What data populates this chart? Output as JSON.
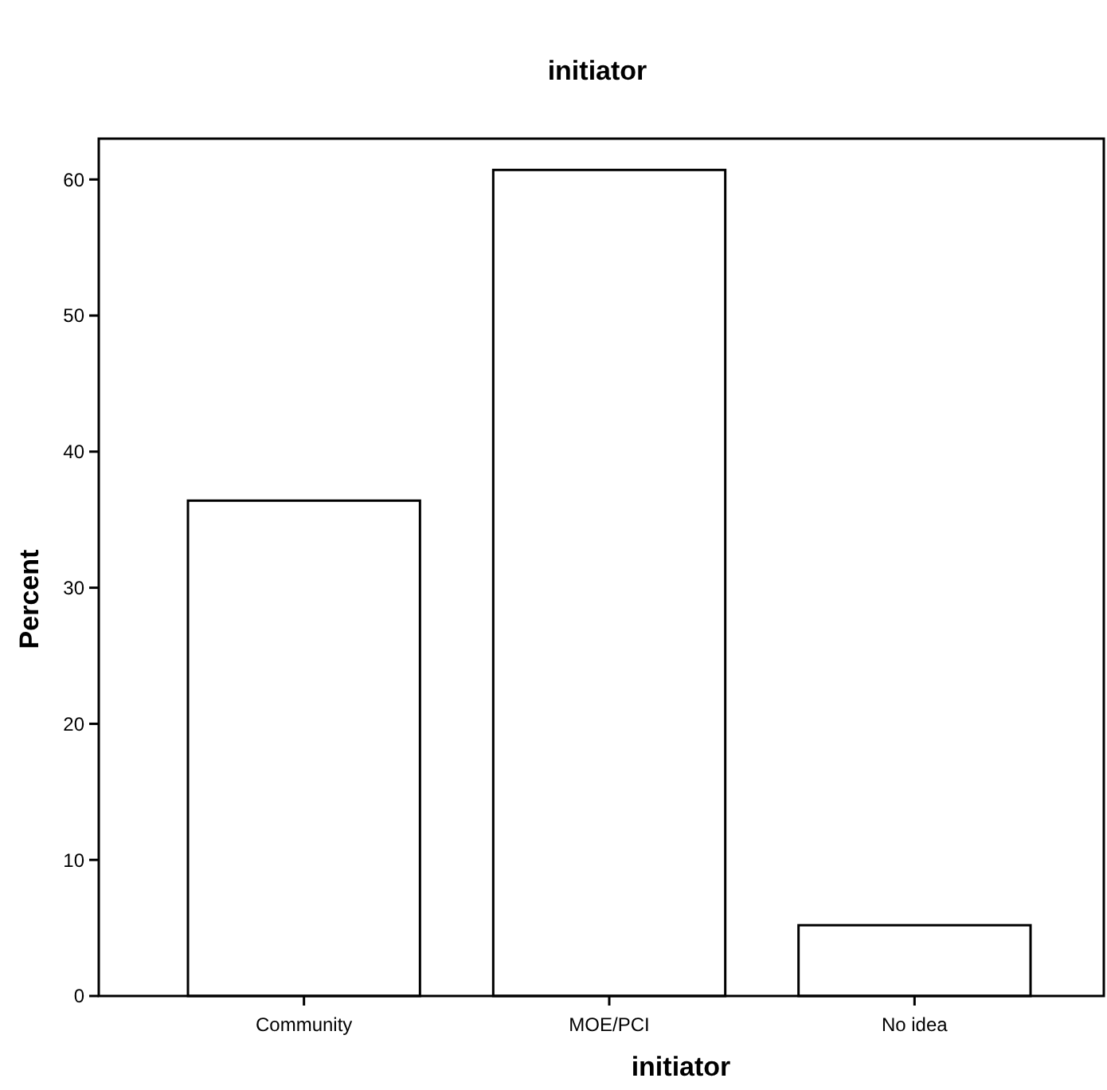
{
  "chart_data": {
    "type": "bar",
    "title": "initiator",
    "xlabel": "initiator",
    "ylabel": "Percent",
    "categories": [
      "Community",
      "MOE/PCI",
      "No idea"
    ],
    "values": [
      36.4,
      60.7,
      5.2
    ],
    "color": "#ffffff",
    "ylim": [
      0,
      63
    ],
    "yticks": [
      0,
      10,
      20,
      30,
      40,
      50,
      60
    ],
    "grid": false
  }
}
